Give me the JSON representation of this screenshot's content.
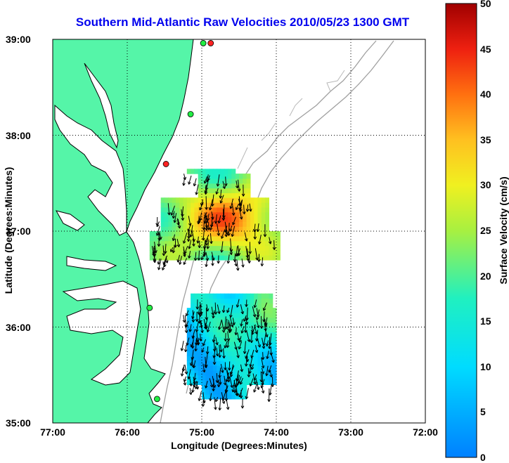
{
  "chart_data": {
    "type": "map-vector",
    "title": "Southern Mid-Atlantic Raw Velocities 2010/05/23 1300 GMT",
    "xlabel": "Longitude (Degrees:Minutes)",
    "ylabel": "Latitude (Degrees:Minutes)",
    "x_ticks": [
      "77:00",
      "76:00",
      "75:00",
      "74:00",
      "73:00",
      "72:00"
    ],
    "y_ticks": [
      "39:00",
      "38:00",
      "37:00",
      "36:00",
      "35:00"
    ],
    "xlim": [
      -77,
      -72
    ],
    "ylim": [
      35,
      39
    ],
    "grid": true,
    "colorbar": {
      "label": "Surface Velocity (cm/s)",
      "range": [
        0,
        50
      ],
      "ticks": [
        "0",
        "5",
        "10",
        "15",
        "20",
        "25",
        "30",
        "35",
        "40",
        "45",
        "50"
      ],
      "colormap": "jet"
    },
    "land_color": "#55f5a8",
    "stations": [
      {
        "lon": -74.88,
        "lat": 38.96,
        "color": "#ff2222"
      },
      {
        "lon": -74.98,
        "lat": 38.96,
        "color": "#22ee44"
      },
      {
        "lon": -75.15,
        "lat": 38.22,
        "color": "#22ee44"
      },
      {
        "lon": -75.48,
        "lat": 37.7,
        "color": "#ff2222"
      },
      {
        "lon": -75.7,
        "lat": 36.2,
        "color": "#22ee44"
      },
      {
        "lon": -75.6,
        "lat": 35.25,
        "color": "#22ee44"
      }
    ],
    "regions": [
      {
        "name": "north",
        "lon_range": [
          -75.8,
          -73.9
        ],
        "lat_range": [
          36.7,
          37.6
        ],
        "speed_range": [
          15,
          40
        ]
      },
      {
        "name": "south",
        "lon_range": [
          -75.25,
          -74.05
        ],
        "lat_range": [
          35.25,
          36.3
        ],
        "speed_range": [
          3,
          30
        ]
      }
    ]
  }
}
